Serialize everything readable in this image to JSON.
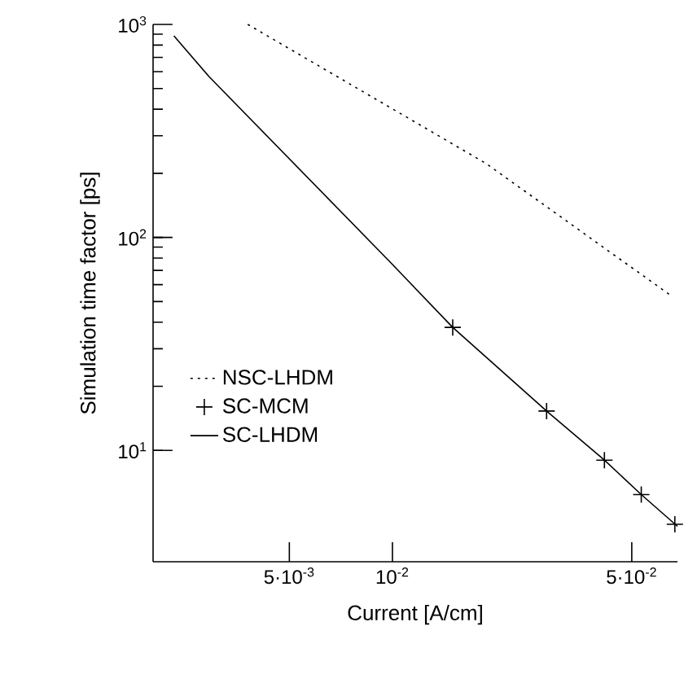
{
  "chart_data": {
    "type": "line",
    "xlabel": "Current  [A/cm]",
    "ylabel": "Simulation time factor  [ps]",
    "log": "xy",
    "grid": false,
    "legend": "bottom left",
    "xlim": [
      0.002,
      0.068
    ],
    "ylim": [
      3,
      1000
    ],
    "xticks": [
      {
        "value": 0.005,
        "label": "5·10$^{-3}$"
      },
      {
        "value": 0.01,
        "label": "10$^{-2}$"
      },
      {
        "value": 0.05,
        "label": "5·10$^{-2}$"
      }
    ],
    "yticks": [
      {
        "value": 10,
        "label": "10$^{1}$"
      },
      {
        "value": 100,
        "label": "10$^{2}$"
      },
      {
        "value": 1000,
        "label": "10$^{3}$"
      }
    ],
    "series": [
      {
        "name": "NSC-LHDM",
        "type": "line",
        "line_style": "dotted",
        "marker": "none",
        "color": "#000000",
        "x": [
          0.00378,
          0.0188,
          0.0655
        ],
        "values": [
          1000,
          222,
          52.9
        ]
      },
      {
        "name": "SC-MCM",
        "type": "scatter",
        "marker": "cross",
        "color": "#000000",
        "x": [
          0.015,
          0.0282,
          0.0416,
          0.0533,
          0.0668
        ],
        "values": [
          37.8,
          15.3,
          9.0,
          6.2,
          4.5
        ]
      },
      {
        "name": "SC-LHDM",
        "type": "line",
        "line_style": "solid",
        "marker": "none",
        "color": "#000000",
        "x": [
          0.0023,
          0.00292,
          0.00984,
          0.015,
          0.0282,
          0.0416,
          0.0533,
          0.068
        ],
        "values": [
          884,
          567,
          76.7,
          37.8,
          15.3,
          9.0,
          6.2,
          4.4
        ]
      }
    ]
  }
}
